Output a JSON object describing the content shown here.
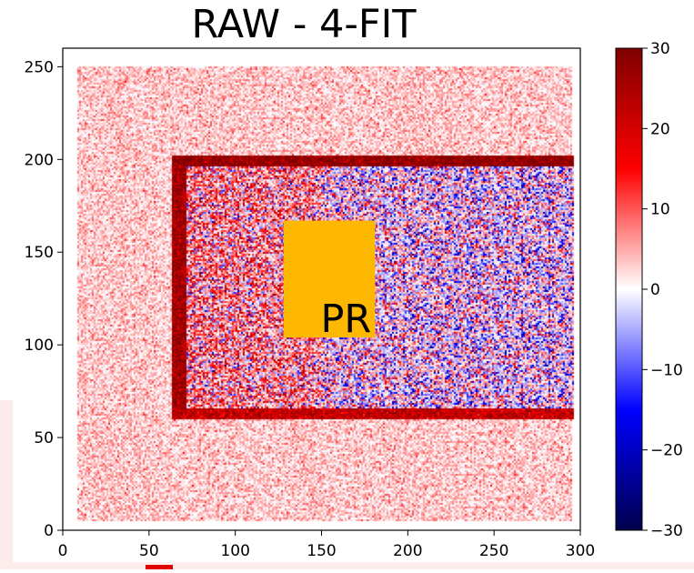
{
  "chart_data": {
    "type": "heatmap",
    "title": "RAW - 4-FIT",
    "xlabel": "",
    "ylabel": "",
    "xlim": [
      0,
      300
    ],
    "ylim": [
      0,
      260
    ],
    "x_ticks": [
      0,
      50,
      100,
      150,
      200,
      250,
      300
    ],
    "y_ticks": [
      0,
      50,
      100,
      150,
      200,
      250
    ],
    "x_tick_labels": [
      "0",
      "50",
      "100",
      "150",
      "200",
      "250",
      "300"
    ],
    "y_tick_labels": [
      "0",
      "50",
      "100",
      "150",
      "200",
      "250"
    ],
    "colormap": "seismic",
    "colorbar": {
      "min": -30,
      "max": 30,
      "ticks": [
        30,
        20,
        10,
        0,
        -10,
        -20,
        -30
      ],
      "tick_labels": [
        "30",
        "20",
        "10",
        "0",
        "−10",
        "−20",
        "−30"
      ]
    },
    "regions": [
      {
        "kind": "background",
        "x": [
          8,
          295
        ],
        "y": [
          5,
          250
        ],
        "level": 3
      },
      {
        "kind": "inner-rectangle",
        "x": [
          72,
          296
        ],
        "y": [
          66,
          196
        ],
        "level": 3
      },
      {
        "kind": "bright-edge-top",
        "x": [
          68,
          296
        ],
        "y": [
          196,
          202
        ],
        "level": 28
      },
      {
        "kind": "bright-edge-bottom",
        "x": [
          63,
          296
        ],
        "y": [
          60,
          66
        ],
        "level": 22
      },
      {
        "kind": "bright-edge-left",
        "x": [
          63,
          72
        ],
        "y": [
          60,
          202
        ],
        "level": 26
      }
    ],
    "annotation": {
      "text": "PR",
      "box_x": [
        128,
        181
      ],
      "box_y": [
        104,
        167
      ],
      "color": "#FFB800"
    },
    "grid": false
  }
}
